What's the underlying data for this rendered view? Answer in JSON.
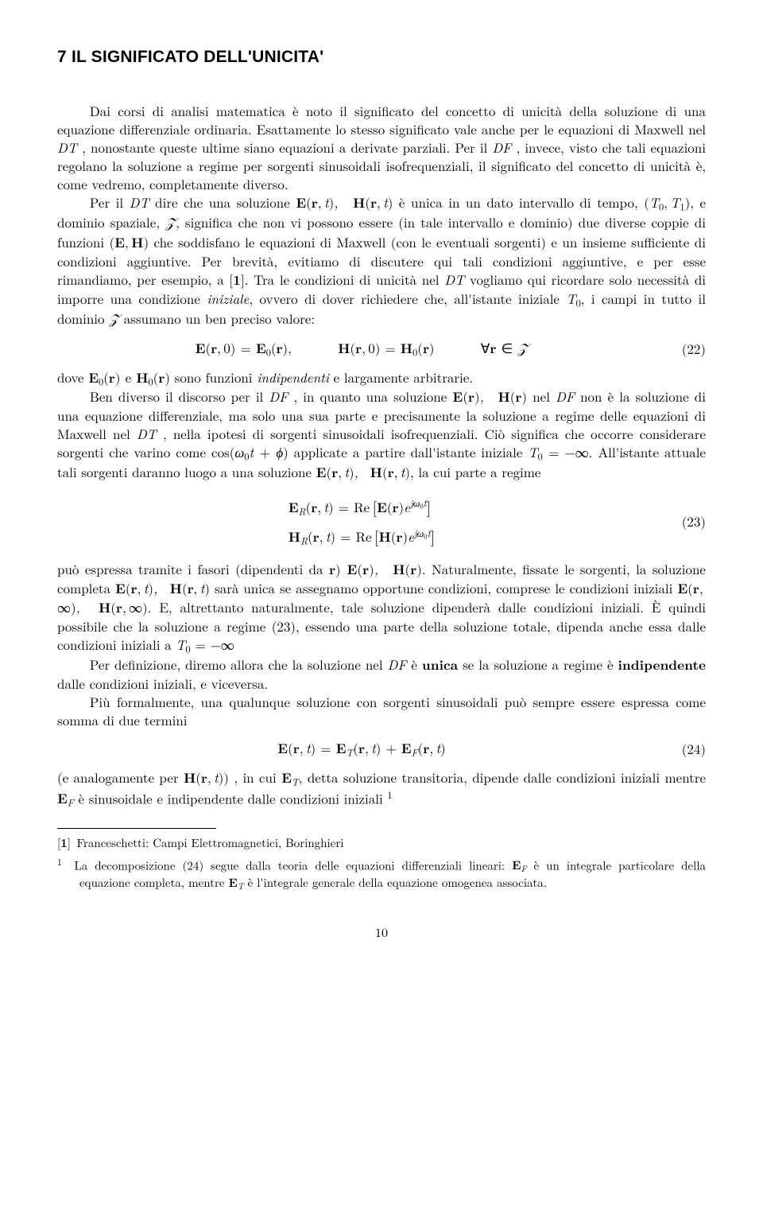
{
  "section": {
    "number": "7",
    "title": "IL SIGNIFICATO DELL'UNICITA'"
  },
  "p1_a": "Dai corsi di analisi matematica è noto il significato del concetto di unicità della soluzione di una equazione differenziale ordinaria. Esattamente lo stesso significato vale anche per le equazioni di Maxwell nel ",
  "p1_b": " , nonostante queste ultime siano equazioni a derivate parziali. Per il ",
  "p1_c": " , invece, visto che tali equazioni regolano la soluzione a regime per sorgenti sinusoidali isofrequenziali, il significato del concetto di unicità è, come vedremo, completamente diverso.",
  "p2_a": "Per il ",
  "p2_b": " dire che una soluzione ",
  "p2_c": " è unica in un dato intervallo di tempo, ",
  "p2_d": ", e dominio spaziale, ",
  "p2_e": ", significa che non vi possono essere (in tale intervallo e dominio) due diverse coppie di funzioni ",
  "p2_f": " che soddisfano le equazioni di Maxwell (con le eventuali sorgenti) e un insieme sufficiente di condizioni aggiuntive. Per brevità, evitiamo di discutere qui tali condizioni aggiuntive, e per esse rimandiamo, per esempio, a [",
  "p2_g": "]. Tra le condizioni di unicità nel ",
  "p2_h": " vogliamo qui ricordare solo necessità di imporre una condizione ",
  "p2_i": ", ovvero di dover richiedere che, all'istante iniziale ",
  "p2_j": ", i campi in tutto il dominio ",
  "p2_k": " assumano un ben preciso valore:",
  "eq22_num": "(22)",
  "p3_a": "dove ",
  "p3_b": " sono funzioni ",
  "p3_c": " e largamente arbitrarie.",
  "p4_a": "Ben diverso il discorso per il ",
  "p4_b": " , in quanto una soluzione ",
  "p4_c": " nel ",
  "p4_d": " non è la soluzione di una equazione differenziale, ma solo una sua parte e precisamente la soluzione a regime delle equazioni di Maxwell nel ",
  "p4_e": " , nella ipotesi di sorgenti sinusoidali isofrequenziali. Ciò significa che occorre considerare sorgenti che varino come ",
  "p4_f": " applicate a partire dall'istante iniziale ",
  "p4_g": ". All'istante attuale tali sorgenti daranno luogo a una soluzione ",
  "p4_h": ", la cui parte a regime",
  "eq23_num": "(23)",
  "p5_a": "può espressa tramite i fasori (dipendenti da ",
  "p5_b": ". Naturalmente, fissate le sorgenti, la soluzione completa ",
  "p5_c": " sarà unica se assegnamo opportune condizioni, comprese le condizioni iniziali ",
  "p5_d": ". E, altrettanto naturalmente, tale soluzione dipenderà dalle condizioni iniziali. È quindi possibile che la soluzione a regime (23), essendo una parte della soluzione totale, dipenda anche essa dalle condizioni iniziali a ",
  "p6_a": "Per definizione, diremo allora che la soluzione nel ",
  "p6_b": " è ",
  "p6_c": " se la soluzione a regime è ",
  "p6_d": " dalle condizioni iniziali, e viceversa.",
  "p7": "Più formalmente, una qualunque soluzione con sorgenti sinusoidali può sempre essere espressa come somma di due termini",
  "eq24_num": "(24)",
  "p8_a": "(e analogamente per ",
  "p8_b": ") , in cui ",
  "p8_c": ", detta soluzione transitoria, dipende dalle condizioni iniziali mentre ",
  "p8_d": " è sinusoidale e indipendente dalle condizioni iniziali ",
  "ref1": "Franceschetti: Campi Elettromagnetici, Boringhieri",
  "fn1_a": "La decomposizione (24) segue dalla teoria delle equazioni differenziali lineari: ",
  "fn1_b": " è un integrale particolare della equazione completa, mentre ",
  "fn1_c": " è l'integrale generale della equazione omogenea associata.",
  "terms": {
    "DT": "DT",
    "DF": "DF",
    "iniziale": "iniziale",
    "indipendenti": "indipendenti",
    "indipendente": "indipendente",
    "unica": "unica",
    "ref_one": "1"
  },
  "page_number": "10"
}
